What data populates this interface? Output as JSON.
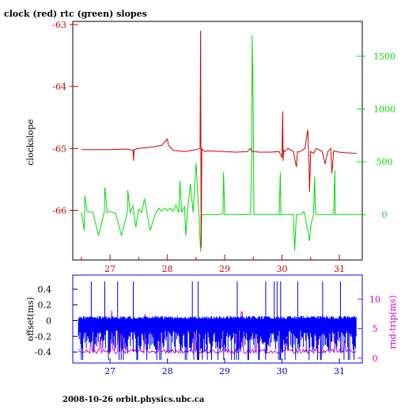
{
  "title": "clock (red) rtc (green) slopes",
  "footer": "2008-10-26  orbit.physics.ubc.ca",
  "colors": {
    "clock": "#cc0000",
    "rtc": "#00dd00",
    "offset": "#0000ff",
    "rtt": "#cc00cc",
    "frame": "#000000",
    "bottom_axis": "#0000cc"
  },
  "chart_data": [
    {
      "type": "line",
      "title": "clock (red) rtc (green) slopes",
      "xlim": [
        26.35,
        31.4
      ],
      "x_ticks": [
        "27",
        "28",
        "29",
        "30",
        "31"
      ],
      "x_tick_values": [
        27,
        28,
        29,
        30,
        31
      ],
      "left_axis": {
        "label": "clockslope",
        "ylim": [
          -66.8,
          -62.95
        ],
        "ticks": [
          "-63",
          "-64",
          "-65",
          "-66"
        ],
        "tick_values": [
          -63,
          -64,
          -65,
          -66
        ]
      },
      "right_axis": {
        "ylim": [
          -430,
          1830
        ],
        "ticks": [
          "0",
          "500",
          "1000",
          "1500"
        ],
        "tick_values": [
          0,
          500,
          1000,
          1500
        ]
      },
      "series": [
        {
          "name": "clock",
          "axis": "left",
          "x": [
            26.5,
            27.0,
            27.3,
            27.4,
            27.41,
            27.42,
            27.5,
            27.7,
            27.9,
            28.0,
            28.02,
            28.05,
            28.1,
            28.3,
            28.5,
            28.57,
            28.58,
            28.59,
            28.6,
            28.61,
            28.65,
            28.7,
            29.0,
            29.2,
            29.4,
            29.45,
            29.48,
            29.5,
            29.52,
            29.6,
            29.8,
            29.95,
            30.0,
            30.01,
            30.02,
            30.03,
            30.05,
            30.1,
            30.2,
            30.25,
            30.27,
            30.3,
            30.4,
            30.45,
            30.47,
            30.48,
            30.5,
            30.55,
            30.6,
            30.7,
            30.75,
            30.8,
            30.85,
            30.87,
            30.9,
            31.0,
            31.1,
            31.3
          ],
          "y": [
            -65.02,
            -65.02,
            -65.01,
            -65.03,
            -65.2,
            -65.02,
            -65.0,
            -64.98,
            -64.95,
            -64.85,
            -64.95,
            -64.98,
            -65.03,
            -65.05,
            -65.02,
            -65.0,
            -63.1,
            -66.6,
            -65.0,
            -65.02,
            -65.05,
            -65.04,
            -65.05,
            -65.06,
            -65.05,
            -65.0,
            -65.05,
            -65.05,
            -65.05,
            -65.06,
            -65.06,
            -65.05,
            -65.15,
            -64.4,
            -65.2,
            -65.03,
            -65.05,
            -65.0,
            -65.05,
            -65.3,
            -65.05,
            -65.06,
            -65.0,
            -64.7,
            -65.2,
            -65.7,
            -65.05,
            -65.08,
            -65.0,
            -65.05,
            -65.25,
            -65.05,
            -65.0,
            -65.4,
            -65.04,
            -65.06,
            -65.07,
            -65.08
          ]
        },
        {
          "name": "rtc",
          "axis": "right",
          "x": [
            26.5,
            26.55,
            26.56,
            26.6,
            26.7,
            26.8,
            26.9,
            26.91,
            26.95,
            27.0,
            27.1,
            27.2,
            27.3,
            27.31,
            27.35,
            27.4,
            27.45,
            27.5,
            27.55,
            27.6,
            27.7,
            27.8,
            27.85,
            27.9,
            27.95,
            28.0,
            28.05,
            28.1,
            28.15,
            28.2,
            28.22,
            28.25,
            28.3,
            28.32,
            28.35,
            28.4,
            28.45,
            28.5,
            28.55,
            28.58,
            28.6,
            28.62,
            28.9,
            28.97,
            28.98,
            29.0,
            29.3,
            29.45,
            29.47,
            29.48,
            29.5,
            29.51,
            29.52,
            29.55,
            29.95,
            29.97,
            29.98,
            30.0,
            30.15,
            30.17,
            30.2,
            30.22,
            30.25,
            30.28,
            30.3,
            30.32,
            30.35,
            30.38,
            30.4,
            30.42,
            30.45,
            30.48,
            30.5,
            30.55,
            30.57,
            30.58,
            30.6,
            30.9,
            30.92,
            30.93,
            30.95,
            31.3
          ],
          "y": [
            20,
            -150,
            180,
            30,
            20,
            -200,
            30,
            260,
            20,
            30,
            10,
            -200,
            20,
            230,
            20,
            80,
            -120,
            50,
            20,
            150,
            -150,
            20,
            60,
            30,
            60,
            40,
            60,
            30,
            90,
            20,
            320,
            20,
            80,
            -200,
            30,
            290,
            20,
            490,
            20,
            -350,
            0,
            0,
            0,
            10,
            400,
            0,
            0,
            5,
            500,
            1700,
            900,
            0,
            0,
            0,
            0,
            400,
            0,
            0,
            0,
            0,
            0,
            -340,
            0,
            0,
            0,
            0,
            10,
            30,
            0,
            -80,
            -150,
            -250,
            -100,
            0,
            360,
            50,
            0,
            0,
            420,
            0,
            0,
            0
          ]
        }
      ]
    },
    {
      "type": "line",
      "xlim": [
        26.35,
        31.4
      ],
      "x_ticks": [
        "27",
        "28",
        "29",
        "30",
        "31"
      ],
      "x_tick_values": [
        27,
        28,
        29,
        30,
        31
      ],
      "left_axis": {
        "label": "offset(ms)",
        "ylim": [
          -0.5,
          0.5
        ],
        "ticks": [
          "0.4",
          "0.2",
          "0",
          "-0.2",
          "-0.4"
        ],
        "tick_values": [
          0.4,
          0.2,
          0,
          -0.2,
          -0.4
        ]
      },
      "right_axis": {
        "label": "rnd-trip(ms)",
        "ylim": [
          -0.3,
          13
        ],
        "ticks": [
          "10",
          "5",
          "0"
        ],
        "tick_values": [
          10,
          5,
          0
        ]
      },
      "series": [
        {
          "name": "offset",
          "axis": "left",
          "x_range": [
            26.45,
            31.3
          ],
          "y_range": [
            -0.5,
            0.5
          ]
        },
        {
          "name": "rnd-trip",
          "axis": "right",
          "x_range": [
            26.45,
            31.3
          ],
          "y_range": [
            0.5,
            11
          ]
        }
      ]
    }
  ]
}
